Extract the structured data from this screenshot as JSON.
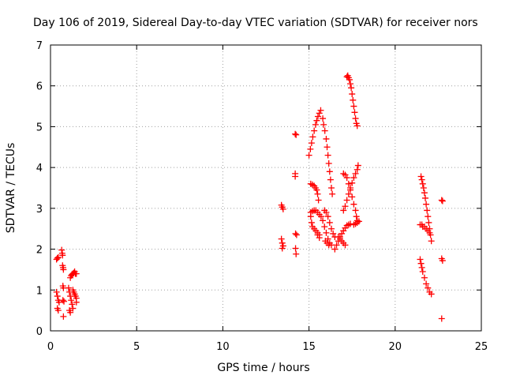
{
  "chart_data": {
    "type": "scatter",
    "title": "Day 106 of 2019, Sidereal Day-to-day VTEC variation (SDTVAR) for receiver nors",
    "xlabel": "GPS time / hours",
    "ylabel": "SDTVAR / TECUs",
    "xlim": [
      0,
      25
    ],
    "ylim": [
      0,
      7
    ],
    "xticks": [
      0,
      5,
      10,
      15,
      20,
      25
    ],
    "yticks": [
      0,
      1,
      2,
      3,
      4,
      5,
      6,
      7
    ],
    "grid": true,
    "marker": "+",
    "colors": {
      "series": "#ff0000",
      "grid": "#a0a0a0",
      "axis": "#000000"
    },
    "segments": [
      [
        [
          0.35,
          1.75
        ],
        [
          0.4,
          1.78
        ],
        [
          0.45,
          1.8
        ]
      ],
      [
        [
          0.35,
          0.95
        ],
        [
          0.4,
          0.85
        ],
        [
          0.45,
          0.75
        ],
        [
          0.5,
          0.7
        ]
      ],
      [
        [
          0.4,
          0.55
        ],
        [
          0.45,
          0.5
        ]
      ],
      [
        [
          0.65,
          1.98
        ],
        [
          0.68,
          1.9
        ],
        [
          0.7,
          1.85
        ]
      ],
      [
        [
          0.7,
          1.6
        ],
        [
          0.73,
          1.55
        ],
        [
          0.75,
          1.5
        ]
      ],
      [
        [
          0.72,
          1.1
        ],
        [
          0.75,
          1.05
        ]
      ],
      [
        [
          0.72,
          0.75
        ],
        [
          0.78,
          0.72
        ]
      ],
      [
        [
          0.75,
          0.35
        ]
      ],
      [
        [
          1.05,
          1.05
        ],
        [
          1.1,
          0.95
        ],
        [
          1.15,
          0.85
        ],
        [
          1.2,
          0.75
        ],
        [
          1.25,
          0.65
        ],
        [
          1.3,
          0.55
        ]
      ],
      [
        [
          1.1,
          0.5
        ],
        [
          1.15,
          0.45
        ]
      ],
      [
        [
          1.15,
          1.3
        ],
        [
          1.2,
          1.35
        ],
        [
          1.25,
          1.38
        ],
        [
          1.3,
          1.4
        ],
        [
          1.35,
          1.42
        ],
        [
          1.4,
          1.45
        ],
        [
          1.45,
          1.4
        ],
        [
          1.5,
          1.4
        ]
      ],
      [
        [
          1.3,
          1.0
        ],
        [
          1.35,
          0.95
        ],
        [
          1.4,
          0.9
        ],
        [
          1.45,
          0.85
        ],
        [
          1.5,
          0.8
        ],
        [
          1.5,
          0.7
        ]
      ],
      [
        [
          13.4,
          3.08
        ],
        [
          13.45,
          3.03
        ],
        [
          13.5,
          2.98
        ]
      ],
      [
        [
          13.4,
          2.25
        ],
        [
          13.45,
          2.15
        ],
        [
          13.5,
          2.08
        ],
        [
          13.45,
          2.02
        ]
      ],
      [
        [
          14.2,
          4.82
        ],
        [
          14.25,
          4.8
        ]
      ],
      [
        [
          14.2,
          3.85
        ],
        [
          14.2,
          3.78
        ]
      ],
      [
        [
          14.22,
          2.38
        ],
        [
          14.28,
          2.35
        ]
      ],
      [
        [
          14.22,
          2.02
        ],
        [
          14.25,
          1.88
        ]
      ],
      [
        [
          15.0,
          4.3
        ],
        [
          15.08,
          4.45
        ],
        [
          15.15,
          4.6
        ],
        [
          15.22,
          4.75
        ],
        [
          15.3,
          4.9
        ],
        [
          15.38,
          5.05
        ],
        [
          15.45,
          5.15
        ],
        [
          15.52,
          5.25
        ],
        [
          15.6,
          5.33
        ],
        [
          15.68,
          5.4
        ]
      ],
      [
        [
          15.8,
          5.2
        ],
        [
          15.85,
          5.05
        ],
        [
          15.92,
          4.9
        ],
        [
          16.0,
          4.7
        ],
        [
          16.05,
          4.5
        ],
        [
          16.1,
          4.3
        ],
        [
          16.15,
          4.1
        ],
        [
          16.2,
          3.9
        ],
        [
          16.25,
          3.7
        ],
        [
          16.3,
          3.5
        ],
        [
          16.35,
          3.35
        ]
      ],
      [
        [
          15.1,
          3.6
        ],
        [
          15.2,
          3.58
        ],
        [
          15.3,
          3.55
        ],
        [
          15.38,
          3.5
        ],
        [
          15.45,
          3.45
        ],
        [
          15.5,
          3.35
        ],
        [
          15.55,
          3.2
        ]
      ],
      [
        [
          15.1,
          2.9
        ],
        [
          15.2,
          2.93
        ],
        [
          15.3,
          2.95
        ],
        [
          15.4,
          2.95
        ],
        [
          15.5,
          2.9
        ],
        [
          15.6,
          2.85
        ],
        [
          15.7,
          2.8
        ],
        [
          15.8,
          2.7
        ],
        [
          15.9,
          2.55
        ],
        [
          16.0,
          2.4
        ],
        [
          16.1,
          2.25
        ],
        [
          16.2,
          2.15
        ],
        [
          16.3,
          2.1
        ]
      ],
      [
        [
          15.1,
          2.8
        ],
        [
          15.15,
          2.65
        ],
        [
          15.2,
          2.55
        ],
        [
          15.3,
          2.5
        ],
        [
          15.4,
          2.45
        ],
        [
          15.5,
          2.4
        ],
        [
          15.6,
          2.35
        ]
      ],
      [
        [
          15.5,
          2.35
        ],
        [
          15.6,
          2.28
        ]
      ],
      [
        [
          15.9,
          2.95
        ],
        [
          16.0,
          2.9
        ],
        [
          16.1,
          2.8
        ],
        [
          16.2,
          2.65
        ],
        [
          16.3,
          2.5
        ],
        [
          16.4,
          2.38
        ],
        [
          16.5,
          2.3
        ]
      ],
      [
        [
          15.95,
          2.2
        ],
        [
          16.05,
          2.15
        ],
        [
          16.15,
          2.1
        ]
      ],
      [
        [
          16.5,
          2.0
        ],
        [
          16.6,
          2.1
        ],
        [
          16.7,
          2.2
        ],
        [
          16.8,
          2.3
        ],
        [
          16.9,
          2.38
        ],
        [
          17.0,
          2.45
        ],
        [
          17.1,
          2.52
        ],
        [
          17.2,
          2.58
        ],
        [
          17.3,
          2.6
        ],
        [
          17.4,
          2.62
        ]
      ],
      [
        [
          16.7,
          2.3
        ],
        [
          16.8,
          2.25
        ],
        [
          16.9,
          2.2
        ],
        [
          17.0,
          2.15
        ],
        [
          17.1,
          2.1
        ]
      ],
      [
        [
          17.0,
          2.95
        ],
        [
          17.1,
          3.05
        ],
        [
          17.2,
          3.2
        ],
        [
          17.3,
          3.35
        ],
        [
          17.4,
          3.5
        ],
        [
          17.5,
          3.62
        ],
        [
          17.6,
          3.75
        ],
        [
          17.7,
          3.85
        ],
        [
          17.8,
          3.95
        ],
        [
          17.85,
          4.05
        ]
      ],
      [
        [
          17.0,
          3.85
        ],
        [
          17.1,
          3.82
        ],
        [
          17.2,
          3.75
        ],
        [
          17.3,
          3.6
        ],
        [
          17.4,
          3.45
        ],
        [
          17.5,
          3.28
        ],
        [
          17.6,
          3.1
        ],
        [
          17.7,
          2.95
        ],
        [
          17.75,
          2.8
        ],
        [
          17.8,
          2.7
        ]
      ],
      [
        [
          17.6,
          2.6
        ],
        [
          17.7,
          2.62
        ],
        [
          17.8,
          2.65
        ],
        [
          17.9,
          2.68
        ]
      ],
      [
        [
          17.2,
          6.22
        ],
        [
          17.25,
          6.25
        ],
        [
          17.3,
          6.2
        ],
        [
          17.35,
          6.15
        ],
        [
          17.4,
          6.05
        ],
        [
          17.45,
          5.95
        ],
        [
          17.5,
          5.8
        ],
        [
          17.55,
          5.65
        ],
        [
          17.6,
          5.5
        ],
        [
          17.65,
          5.35
        ],
        [
          17.7,
          5.2
        ],
        [
          17.75,
          5.08
        ],
        [
          17.8,
          5.02
        ]
      ],
      [
        [
          21.5,
          3.78
        ],
        [
          21.55,
          3.7
        ],
        [
          21.6,
          3.6
        ],
        [
          21.65,
          3.5
        ],
        [
          21.7,
          3.38
        ],
        [
          21.75,
          3.25
        ],
        [
          21.8,
          3.1
        ],
        [
          21.85,
          2.95
        ],
        [
          21.9,
          2.8
        ],
        [
          21.95,
          2.65
        ],
        [
          22.0,
          2.5
        ],
        [
          22.05,
          2.35
        ],
        [
          22.1,
          2.2
        ]
      ],
      [
        [
          21.45,
          2.6
        ],
        [
          21.55,
          2.6
        ],
        [
          21.6,
          2.55
        ],
        [
          21.7,
          2.55
        ],
        [
          21.8,
          2.5
        ],
        [
          21.9,
          2.45
        ],
        [
          22.0,
          2.4
        ]
      ],
      [
        [
          21.45,
          1.75
        ],
        [
          21.5,
          1.65
        ],
        [
          21.55,
          1.55
        ],
        [
          21.6,
          1.45
        ],
        [
          21.7,
          1.3
        ],
        [
          21.8,
          1.15
        ],
        [
          21.9,
          1.05
        ],
        [
          22.0,
          0.95
        ],
        [
          22.1,
          0.9
        ]
      ],
      [
        [
          22.7,
          3.2
        ],
        [
          22.75,
          3.18
        ]
      ],
      [
        [
          22.7,
          1.77
        ],
        [
          22.75,
          1.72
        ]
      ],
      [
        [
          22.7,
          0.3
        ]
      ]
    ]
  }
}
